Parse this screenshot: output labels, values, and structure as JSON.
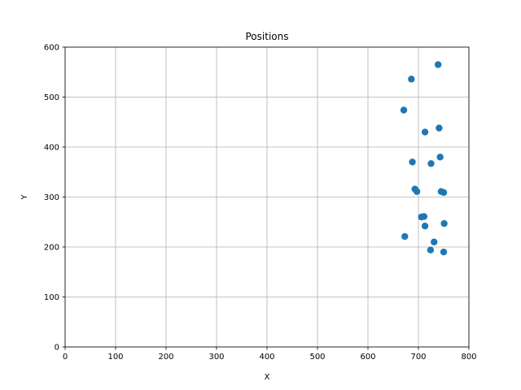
{
  "chart_data": {
    "type": "scatter",
    "title": "Positions",
    "xlabel": "X",
    "ylabel": "Y",
    "xlim": [
      0,
      800
    ],
    "ylim": [
      0,
      600
    ],
    "xticks": [
      0,
      100,
      200,
      300,
      400,
      500,
      600,
      700,
      800
    ],
    "yticks": [
      0,
      100,
      200,
      300,
      400,
      500,
      600
    ],
    "grid": true,
    "marker_color": "#1f77b4",
    "series": [
      {
        "points": [
          {
            "x": 739,
            "y": 565
          },
          {
            "x": 686,
            "y": 536
          },
          {
            "x": 671,
            "y": 474
          },
          {
            "x": 741,
            "y": 438
          },
          {
            "x": 713,
            "y": 430
          },
          {
            "x": 743,
            "y": 380
          },
          {
            "x": 688,
            "y": 370
          },
          {
            "x": 725,
            "y": 367
          },
          {
            "x": 693,
            "y": 316
          },
          {
            "x": 697,
            "y": 311
          },
          {
            "x": 745,
            "y": 311
          },
          {
            "x": 750,
            "y": 309
          },
          {
            "x": 706,
            "y": 260
          },
          {
            "x": 711,
            "y": 261
          },
          {
            "x": 751,
            "y": 247
          },
          {
            "x": 713,
            "y": 242
          },
          {
            "x": 673,
            "y": 221
          },
          {
            "x": 731,
            "y": 210
          },
          {
            "x": 724,
            "y": 194
          },
          {
            "x": 750,
            "y": 190
          }
        ]
      }
    ]
  }
}
